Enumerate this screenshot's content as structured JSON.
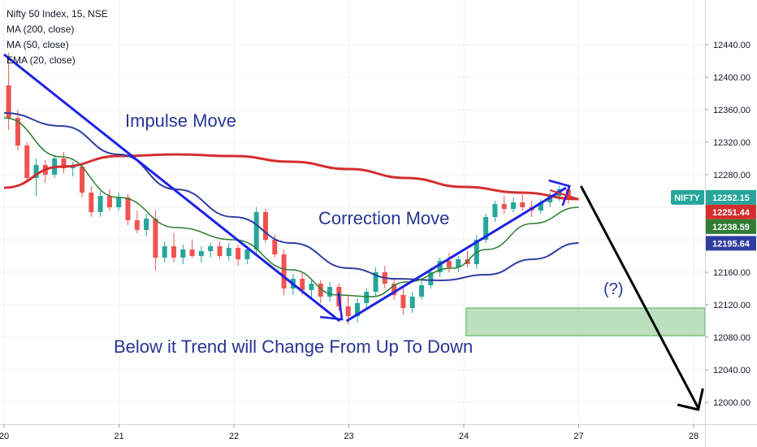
{
  "legend": {
    "title": "Nifty 50 Index, 15, NSE",
    "ma200": "MA (200, close)",
    "ma50": "MA (50, close)",
    "ema20": "EMA (20, close)"
  },
  "colors": {
    "up": "#26a69a",
    "down": "#ef5350",
    "ma200": "#d32f2f",
    "ma50": "#303f9f",
    "ema20": "#2e7d32",
    "annotation": "#283593",
    "trendline": "#1e22e6",
    "zone": "#a5d6a7",
    "projection": "#000000"
  },
  "chart_data": {
    "type": "candlestick",
    "y_ticks": [
      12000,
      12040,
      12080,
      12120,
      12160,
      12200,
      12240,
      12280,
      12320,
      12360,
      12400,
      12440
    ],
    "ylim": [
      11985,
      12475
    ],
    "x_ticks": [
      "20",
      "21",
      "22",
      "23",
      "24",
      "27",
      "28"
    ],
    "price_tags": [
      {
        "label": "NIFTY",
        "value": 12252.15,
        "text": "12252.15",
        "color": "#26a69a"
      },
      {
        "value": 12251.44,
        "text": "12251.44",
        "color": "#d32f2f"
      },
      {
        "value": 12238.59,
        "text": "12238.59",
        "color": "#2e7d32"
      },
      {
        "value": 12195.64,
        "text": "12195.64",
        "color": "#303f9f"
      }
    ],
    "support_zone": {
      "from": 12082,
      "to": 12116,
      "start_day": 4.02
    },
    "annotations": {
      "impulse": "Impulse Move",
      "correction": "Correction Move",
      "question": "(?)",
      "warning": "Below it Trend will Change From Up To Down"
    },
    "candles": [
      [
        12390,
        12430,
        12335,
        12350
      ],
      [
        12350,
        12360,
        12310,
        12316
      ],
      [
        12316,
        12320,
        12272,
        12276
      ],
      [
        12276,
        12300,
        12254,
        12292
      ],
      [
        12292,
        12298,
        12270,
        12280
      ],
      [
        12280,
        12304,
        12276,
        12300
      ],
      [
        12300,
        12308,
        12282,
        12288
      ],
      [
        12288,
        12296,
        12278,
        12290
      ],
      [
        12290,
        12294,
        12252,
        12258
      ],
      [
        12258,
        12266,
        12228,
        12234
      ],
      [
        12234,
        12260,
        12228,
        12254
      ],
      [
        12254,
        12262,
        12236,
        12240
      ],
      [
        12240,
        12258,
        12236,
        12252
      ],
      [
        12252,
        12256,
        12218,
        12224
      ],
      [
        12224,
        12236,
        12208,
        12212
      ],
      [
        12212,
        12232,
        12204,
        12226
      ],
      [
        12226,
        12236,
        12162,
        12178
      ],
      [
        12178,
        12198,
        12172,
        12192
      ],
      [
        12192,
        12208,
        12172,
        12178
      ],
      [
        12178,
        12194,
        12170,
        12188
      ],
      [
        12188,
        12200,
        12178,
        12180
      ],
      [
        12180,
        12192,
        12172,
        12186
      ],
      [
        12186,
        12196,
        12178,
        12192
      ],
      [
        12192,
        12198,
        12176,
        12180
      ],
      [
        12180,
        12196,
        12174,
        12190
      ],
      [
        12190,
        12194,
        12168,
        12176
      ],
      [
        12176,
        12192,
        12170,
        12188
      ],
      [
        12188,
        12240,
        12182,
        12234
      ],
      [
        12234,
        12238,
        12196,
        12200
      ],
      [
        12200,
        12206,
        12178,
        12182
      ],
      [
        12182,
        12188,
        12132,
        12140
      ],
      [
        12140,
        12158,
        12132,
        12152
      ],
      [
        12152,
        12160,
        12132,
        12138
      ],
      [
        12138,
        12152,
        12128,
        12146
      ],
      [
        12146,
        12150,
        12122,
        12130
      ],
      [
        12130,
        12148,
        12124,
        12142
      ],
      [
        12142,
        12146,
        12112,
        12118
      ],
      [
        12118,
        12132,
        12096,
        12106
      ],
      [
        12106,
        12128,
        12098,
        12122
      ],
      [
        12122,
        12140,
        12114,
        12136
      ],
      [
        12136,
        12166,
        12130,
        12160
      ],
      [
        12160,
        12168,
        12140,
        12146
      ],
      [
        12146,
        12152,
        12126,
        12132
      ],
      [
        12132,
        12142,
        12108,
        12116
      ],
      [
        12116,
        12136,
        12110,
        12130
      ],
      [
        12130,
        12150,
        12126,
        12144
      ],
      [
        12144,
        12166,
        12140,
        12160
      ],
      [
        12160,
        12178,
        12154,
        12174
      ],
      [
        12174,
        12184,
        12160,
        12166
      ],
      [
        12166,
        12180,
        12160,
        12176
      ],
      [
        12176,
        12186,
        12166,
        12170
      ],
      [
        12170,
        12206,
        12164,
        12200
      ],
      [
        12200,
        12232,
        12196,
        12228
      ],
      [
        12228,
        12248,
        12222,
        12244
      ],
      [
        12244,
        12254,
        12232,
        12238
      ],
      [
        12238,
        12252,
        12234,
        12246
      ],
      [
        12246,
        12256,
        12236,
        12240
      ],
      [
        12240,
        12248,
        12228,
        12236
      ],
      [
        12236,
        12250,
        12232,
        12246
      ],
      [
        12246,
        12258,
        12240,
        12254
      ],
      [
        12254,
        12266,
        12248,
        12262
      ],
      [
        12262,
        12268,
        12244,
        12252
      ]
    ],
    "ma200": [
      [
        0,
        12264
      ],
      [
        0.5,
        12290
      ],
      [
        1,
        12303
      ],
      [
        1.5,
        12305
      ],
      [
        2,
        12303
      ],
      [
        2.5,
        12296
      ],
      [
        3,
        12287
      ],
      [
        3.5,
        12276
      ],
      [
        4,
        12265
      ],
      [
        4.5,
        12258
      ],
      [
        5,
        12250
      ]
    ],
    "ma50": [
      [
        0,
        12356
      ],
      [
        0.5,
        12340
      ],
      [
        1,
        12305
      ],
      [
        1.5,
        12262
      ],
      [
        2,
        12228
      ],
      [
        2.5,
        12196
      ],
      [
        3,
        12165
      ],
      [
        3.4,
        12152
      ],
      [
        3.8,
        12150
      ],
      [
        4.2,
        12157
      ],
      [
        4.6,
        12176
      ],
      [
        5,
        12196
      ]
    ],
    "ema20": [
      [
        0,
        12350
      ],
      [
        0.5,
        12302
      ],
      [
        1,
        12252
      ],
      [
        1.5,
        12215
      ],
      [
        2,
        12200
      ],
      [
        2.5,
        12163
      ],
      [
        2.9,
        12132
      ],
      [
        3.2,
        12130
      ],
      [
        3.5,
        12148
      ],
      [
        3.9,
        12165
      ],
      [
        4.2,
        12188
      ],
      [
        4.6,
        12220
      ],
      [
        5,
        12240
      ]
    ]
  }
}
